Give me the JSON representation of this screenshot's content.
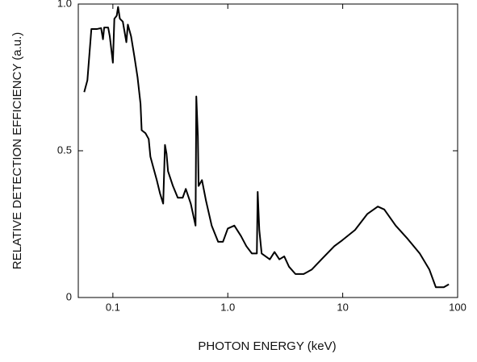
{
  "chart_data": {
    "type": "line",
    "xlabel": "PHOTON ENERGY (keV)",
    "ylabel": "RELATIVE DETECTION EFFICIENCY (a.u.)",
    "xscale": "log",
    "xlim": [
      0.05,
      100
    ],
    "xticks": [
      0.1,
      {
        "value": 1,
        "label": "1.0"
      },
      10,
      100
    ],
    "ylim": [
      0,
      1
    ],
    "yticks": [
      0,
      0.5,
      {
        "value": 1,
        "label": "1.0"
      }
    ],
    "grid": false,
    "color": "#000000",
    "x": [
      0.0563,
      0.06,
      0.065,
      0.073,
      0.079,
      0.082,
      0.084,
      0.091,
      0.094,
      0.1,
      0.103,
      0.108,
      0.111,
      0.115,
      0.122,
      0.131,
      0.135,
      0.144,
      0.154,
      0.164,
      0.174,
      0.178,
      0.192,
      0.205,
      0.212,
      0.226,
      0.241,
      0.257,
      0.274,
      0.284,
      0.293,
      0.302,
      0.333,
      0.367,
      0.405,
      0.431,
      0.476,
      0.524,
      0.532,
      0.549,
      0.557,
      0.596,
      0.646,
      0.724,
      0.824,
      0.908,
      1.0,
      1.14,
      1.3,
      1.45,
      1.62,
      1.79,
      1.82,
      1.88,
      1.97,
      2.32,
      2.55,
      2.81,
      3.1,
      3.41,
      3.88,
      4.57,
      5.37,
      6.73,
      8.45,
      9.9,
      12.8,
      16.4,
      20.2,
      23.0,
      28.9,
      36.7,
      46.8,
      56.8,
      64.6,
      75.8,
      83.9
    ],
    "values": [
      0.7,
      0.74,
      0.915,
      0.915,
      0.918,
      0.88,
      0.92,
      0.92,
      0.89,
      0.8,
      0.95,
      0.96,
      0.99,
      0.95,
      0.94,
      0.87,
      0.93,
      0.89,
      0.82,
      0.75,
      0.66,
      0.57,
      0.56,
      0.54,
      0.48,
      0.44,
      0.4,
      0.355,
      0.32,
      0.52,
      0.49,
      0.43,
      0.38,
      0.34,
      0.34,
      0.37,
      0.32,
      0.245,
      0.685,
      0.55,
      0.38,
      0.4,
      0.33,
      0.245,
      0.19,
      0.19,
      0.235,
      0.245,
      0.21,
      0.175,
      0.15,
      0.15,
      0.36,
      0.23,
      0.15,
      0.13,
      0.155,
      0.13,
      0.14,
      0.105,
      0.08,
      0.08,
      0.095,
      0.135,
      0.175,
      0.195,
      0.23,
      0.285,
      0.31,
      0.3,
      0.245,
      0.2,
      0.15,
      0.095,
      0.035,
      0.035,
      0.045
    ]
  }
}
